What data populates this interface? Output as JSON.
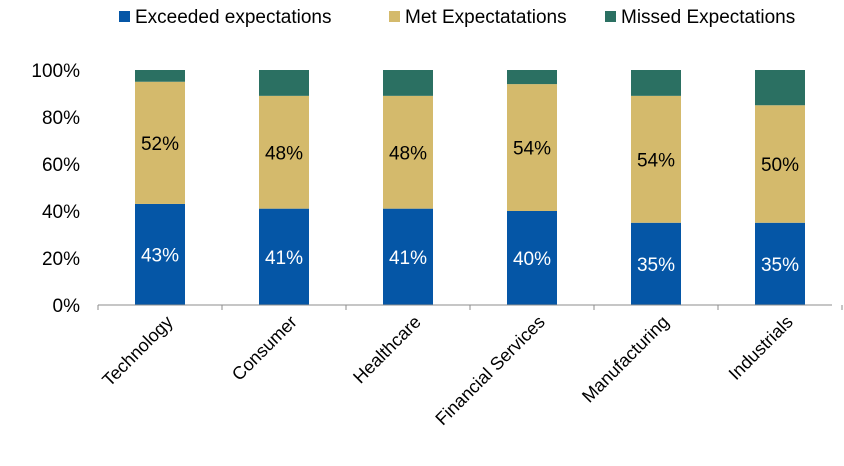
{
  "chart_data": {
    "type": "bar",
    "stacked": true,
    "categories": [
      "Technology",
      "Consumer",
      "Healthcare",
      "Financial Services",
      "Manufacturing",
      "Industrials"
    ],
    "series": [
      {
        "name": "Exceeded expectations",
        "values": [
          43,
          41,
          41,
          40,
          35,
          35
        ],
        "labels": [
          "43%",
          "41%",
          "41%",
          "40%",
          "35%",
          "35%"
        ],
        "color": "#0556A6",
        "label_color": "#ffffff"
      },
      {
        "name": "Met Expectatations",
        "values": [
          52,
          48,
          48,
          54,
          54,
          50
        ],
        "labels": [
          "52%",
          "48%",
          "48%",
          "54%",
          "54%",
          "50%"
        ],
        "color": "#D4BA6C",
        "label_color": "#000000"
      },
      {
        "name": "Missed Expectations",
        "values": [
          5,
          11,
          11,
          6,
          11,
          15
        ],
        "color": "#2B7062"
      }
    ],
    "yticks": [
      "0%",
      "20%",
      "40%",
      "60%",
      "80%",
      "100%"
    ],
    "ylim": [
      0,
      100
    ],
    "grid": false,
    "legend_position": "top"
  }
}
